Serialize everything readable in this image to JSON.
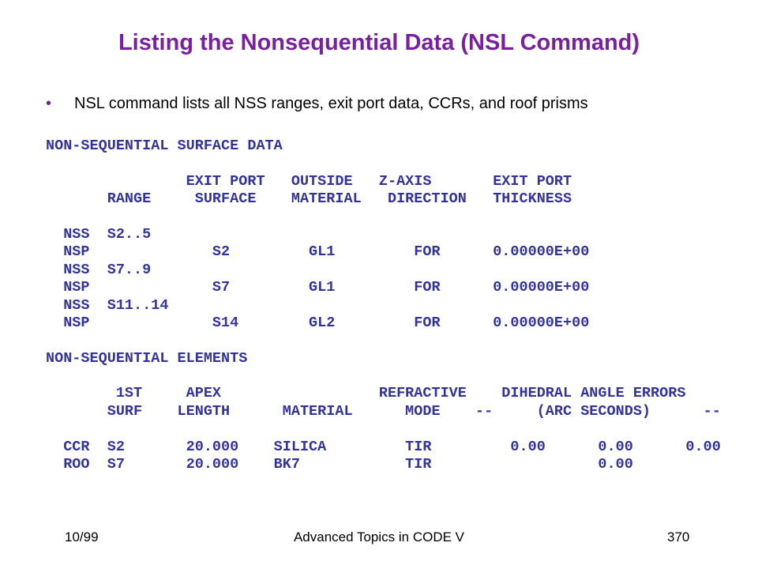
{
  "header": {
    "title": "Listing the Nonsequential Data (NSL Command)"
  },
  "bullet": "NSL command lists all NSS ranges, exit port data, CCRs, and roof prisms",
  "surface_data": {
    "heading": "NON-SEQUENTIAL SURFACE DATA",
    "header_lines": [
      "                EXIT PORT   OUTSIDE   Z-AXIS       EXIT PORT",
      "       RANGE     SURFACE    MATERIAL   DIRECTION   THICKNESS"
    ],
    "rows": [
      "  NSS  S2..5",
      "  NSP              S2         GL1         FOR      0.00000E+00",
      "  NSS  S7..9",
      "  NSP              S7         GL1         FOR      0.00000E+00",
      "  NSS  S11..14",
      "  NSP              S14        GL2         FOR      0.00000E+00"
    ]
  },
  "elements": {
    "heading": "NON-SEQUENTIAL ELEMENTS",
    "header_lines": [
      "        1ST     APEX                  REFRACTIVE    DIHEDRAL ANGLE ERRORS",
      "       SURF    LENGTH      MATERIAL      MODE    --     (ARC SECONDS)      --"
    ],
    "rows": [
      "  CCR  S2       20.000    SILICA         TIR         0.00      0.00      0.00",
      "  ROO  S7       20.000    BK7            TIR                   0.00"
    ]
  },
  "footer": {
    "date": "10/99",
    "center": "Advanced Topics in CODE V",
    "page": "370"
  }
}
